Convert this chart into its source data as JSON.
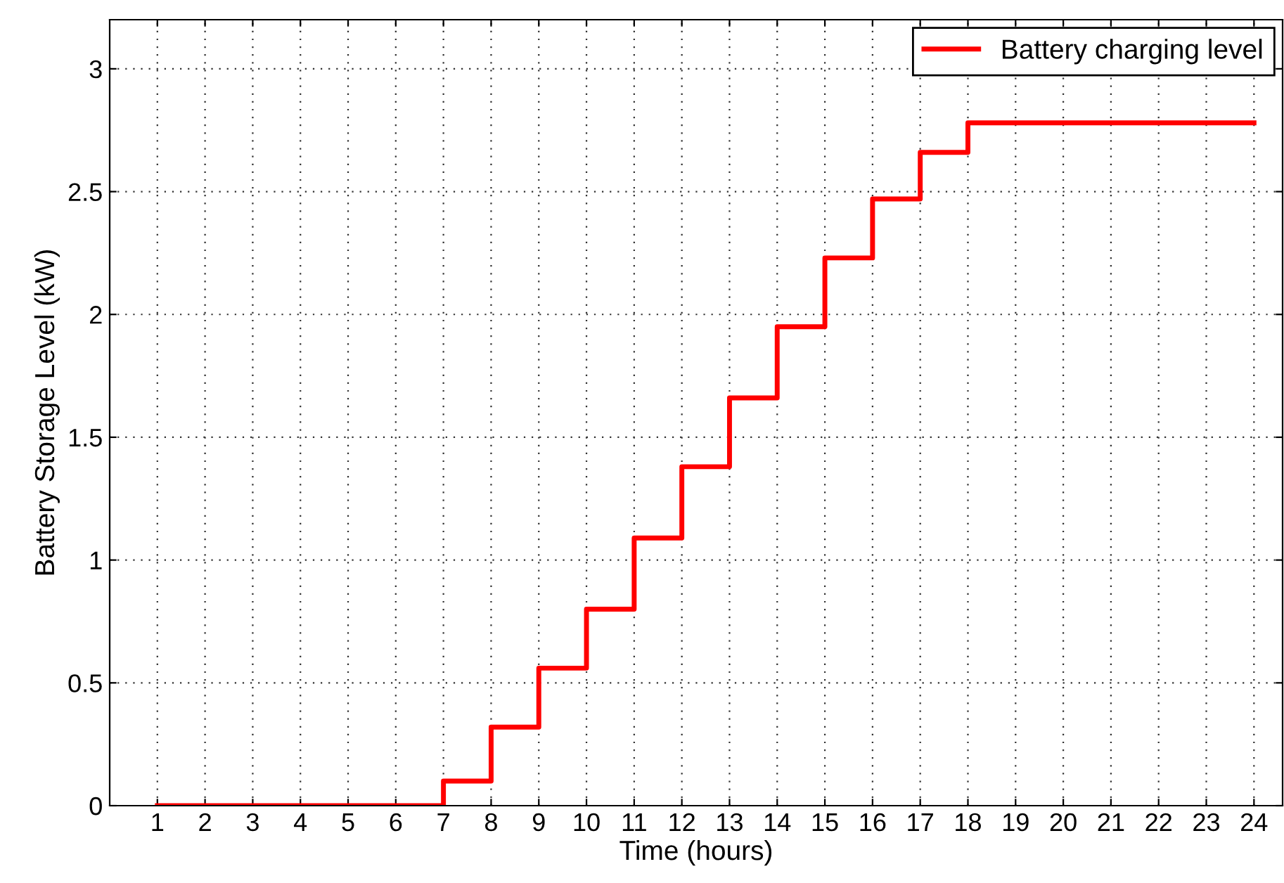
{
  "chart_data": {
    "type": "step",
    "xlabel": "Time (hours)",
    "ylabel": "Battery Storage Level (kW)",
    "x": [
      1,
      2,
      3,
      4,
      5,
      6,
      7,
      8,
      9,
      10,
      11,
      12,
      13,
      14,
      15,
      16,
      17,
      18,
      19,
      20,
      21,
      22,
      23,
      24
    ],
    "series": [
      {
        "name": "Battery charging level",
        "color": "#ff0000",
        "values": [
          0,
          0,
          0,
          0,
          0,
          0,
          0.1,
          0.32,
          0.56,
          0.8,
          1.09,
          1.38,
          1.66,
          1.95,
          2.23,
          2.47,
          2.66,
          2.78,
          2.78,
          2.78,
          2.78,
          2.78,
          2.78,
          2.78
        ]
      }
    ],
    "xlim": [
      0,
      24.6
    ],
    "ylim": [
      0,
      3.2
    ],
    "xticks": [
      1,
      2,
      3,
      4,
      5,
      6,
      7,
      8,
      9,
      10,
      11,
      12,
      13,
      14,
      15,
      16,
      17,
      18,
      19,
      20,
      21,
      22,
      23,
      24
    ],
    "yticks": [
      0,
      0.5,
      1,
      1.5,
      2,
      2.5,
      3
    ],
    "grid": true,
    "legend": "top right",
    "line_style": "solid"
  }
}
